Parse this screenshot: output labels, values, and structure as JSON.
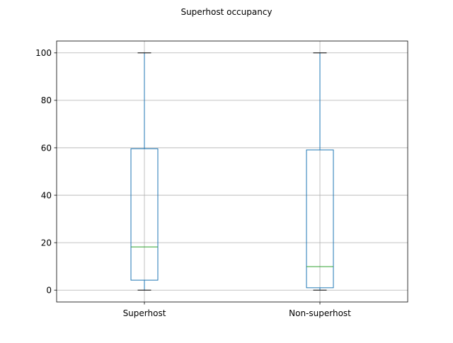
{
  "chart_data": {
    "type": "box",
    "title": "Superhost occupancy",
    "xlabel": "",
    "ylabel": "",
    "categories": [
      "Superhost",
      "Non-superhost"
    ],
    "boxes": [
      {
        "name": "Superhost",
        "whisker_low": 0,
        "q1": 4.2,
        "median": 18.2,
        "q3": 59.6,
        "whisker_high": 100
      },
      {
        "name": "Non-superhost",
        "whisker_low": 0,
        "q1": 1.0,
        "median": 9.9,
        "q3": 59.1,
        "whisker_high": 100
      }
    ],
    "ylim": [
      -5,
      105
    ],
    "yticks": [
      0,
      20,
      40,
      60,
      80,
      100
    ],
    "grid": true,
    "legend": "none",
    "colors": {
      "box": "#1f77b4",
      "whisker": "#1f77b4",
      "cap": "#000000",
      "median": "#2ca02c",
      "grid": "#b0b0b0",
      "axes": "#000000"
    }
  }
}
